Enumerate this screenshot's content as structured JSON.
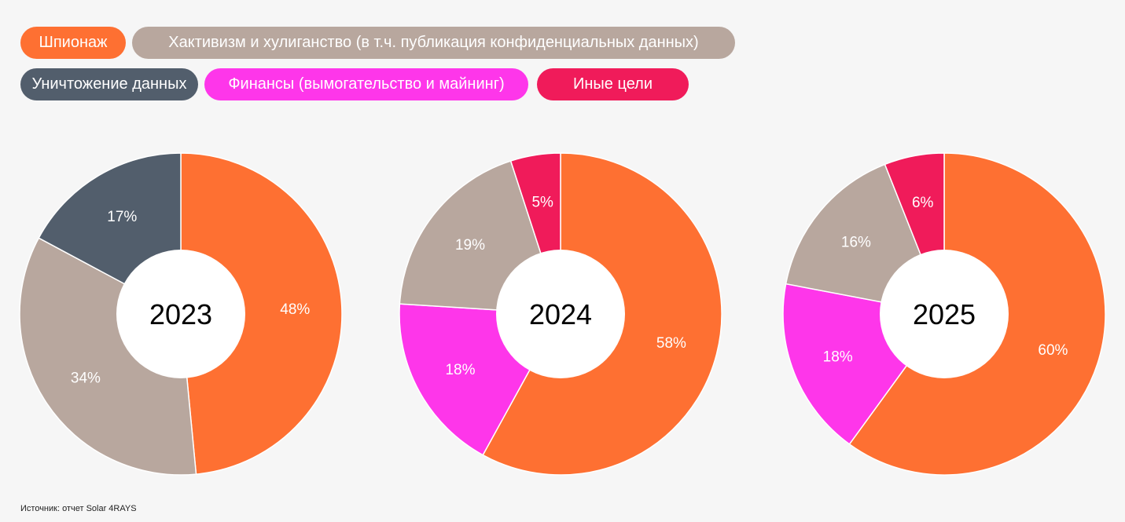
{
  "legend": [
    {
      "key": "espionage",
      "label": "Шпионаж",
      "color": "#fe7032"
    },
    {
      "key": "hacktivism",
      "label": "Хактивизм и хулиганство (в т.ч. публикация конфиденциальных данных)",
      "color": "#b8a79e"
    },
    {
      "key": "destruction",
      "label": "Уничтожение данных",
      "color": "#525e6c"
    },
    {
      "key": "finance",
      "label": "Финансы (вымогательство и майнинг)",
      "color": "#fe36ea"
    },
    {
      "key": "other",
      "label": "Иные цели",
      "color": "#f01b5a"
    }
  ],
  "chart_data": [
    {
      "type": "pie",
      "title": "2023",
      "slices": [
        {
          "key": "espionage",
          "value": 48,
          "label": "48%"
        },
        {
          "key": "hacktivism",
          "value": 34,
          "label": "34%"
        },
        {
          "key": "destruction",
          "value": 17,
          "label": "17%"
        }
      ]
    },
    {
      "type": "pie",
      "title": "2024",
      "slices": [
        {
          "key": "espionage",
          "value": 58,
          "label": "58%"
        },
        {
          "key": "finance",
          "value": 18,
          "label": "18%"
        },
        {
          "key": "hacktivism",
          "value": 19,
          "label": "19%"
        },
        {
          "key": "other",
          "value": 5,
          "label": "5%"
        }
      ]
    },
    {
      "type": "pie",
      "title": "2025",
      "slices": [
        {
          "key": "espionage",
          "value": 60,
          "label": "60%"
        },
        {
          "key": "finance",
          "value": 18,
          "label": "18%"
        },
        {
          "key": "hacktivism",
          "value": 16,
          "label": "16%"
        },
        {
          "key": "other",
          "value": 6,
          "label": "6%"
        }
      ]
    }
  ],
  "source": "Источник: отчет Solar 4RAYS"
}
